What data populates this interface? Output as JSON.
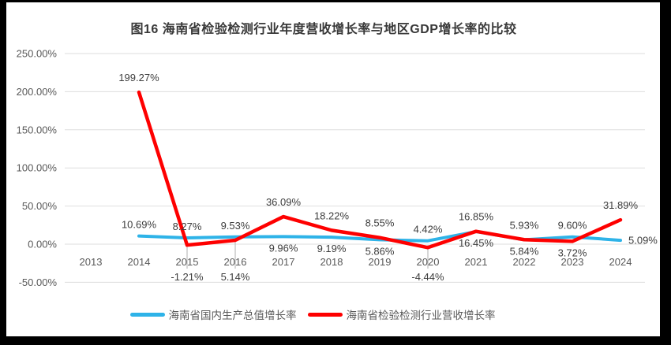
{
  "title": "图16  海南省检验检测行业年度营收增长率与地区GDP增长率的比较",
  "chart_data": {
    "type": "line",
    "title": "图16  海南省检验检测行业年度营收增长率与地区GDP增长率的比较",
    "categories": [
      "2013",
      "2014",
      "2015",
      "2016",
      "2017",
      "2018",
      "2019",
      "2020",
      "2021",
      "2022",
      "2023",
      "2024"
    ],
    "y_axis": {
      "ticks": [
        "250.00%",
        "200.00%",
        "150.00%",
        "100.00%",
        "50.00%",
        "0.00%",
        "-50.00%"
      ],
      "max": 250,
      "min": -50,
      "step": 50,
      "unit": "%"
    },
    "grid": true,
    "legend_position": "bottom",
    "series": [
      {
        "name": "海南省国内生产总值增长率",
        "color": "#2EB3E8",
        "start_index": 1,
        "values": [
          10.69,
          8.27,
          9.53,
          9.96,
          9.19,
          5.86,
          4.42,
          16.45,
          5.84,
          9.6,
          5.09
        ],
        "labels": [
          "10.69%",
          "8.27%",
          "9.53%",
          "9.96%",
          "9.19%",
          "5.86%",
          "4.42%",
          "16.45%",
          "5.84%",
          "9.60%",
          "5.09%"
        ],
        "label_pos": [
          "above",
          "above",
          "above",
          "below",
          "below",
          "below",
          "above",
          "below",
          "below",
          "above",
          "right"
        ]
      },
      {
        "name": "海南省检验检测行业营收增长率",
        "color": "#FE0000",
        "start_index": 1,
        "values": [
          199.27,
          -1.21,
          5.14,
          36.09,
          18.22,
          8.55,
          -4.44,
          16.85,
          5.93,
          3.72,
          31.89
        ],
        "labels": [
          "199.27%",
          "-1.21%",
          "5.14%",
          "36.09%",
          "18.22%",
          "8.55%",
          "-4.44%",
          "16.85%",
          "5.93%",
          "3.72%",
          "31.89%"
        ],
        "label_pos": [
          "above",
          "axis",
          "axis",
          "above",
          "above",
          "above",
          "axis",
          "above",
          "above",
          "below",
          "above"
        ]
      }
    ],
    "style": {
      "grid_color": "#DEDEDE",
      "axis_text_color": "#595959",
      "data_label_color": "#3D3D3D",
      "leader_line_color": "#AFAFAF",
      "title_color": "#383838"
    }
  }
}
